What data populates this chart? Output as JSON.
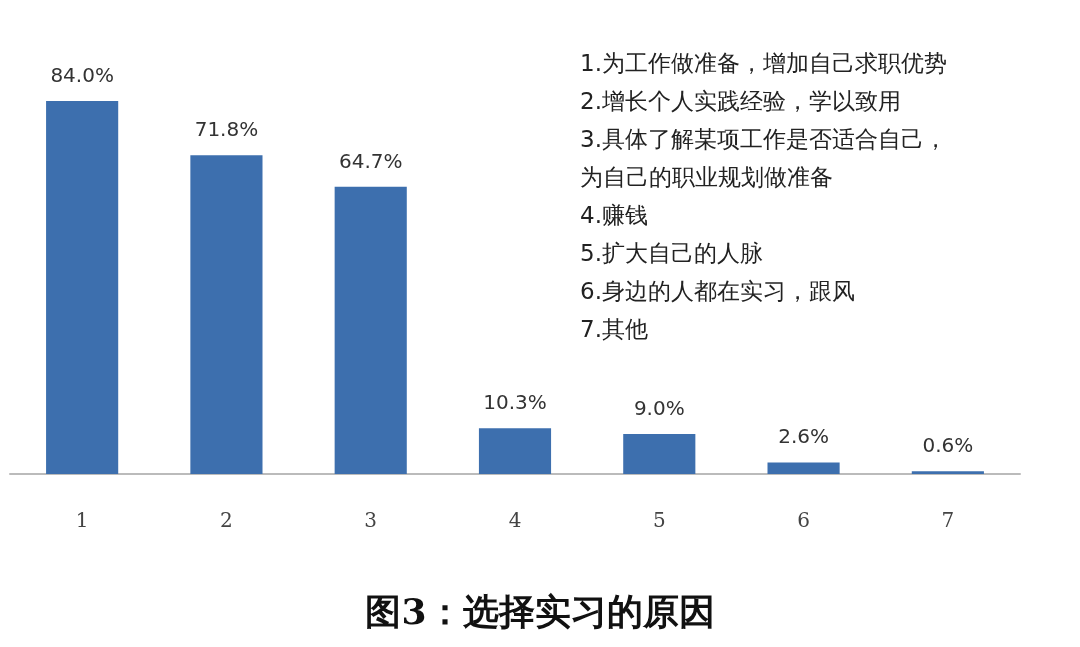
{
  "chart_data": {
    "type": "bar",
    "title": "图3：选择实习的原因",
    "categories": [
      "1",
      "2",
      "3",
      "4",
      "5",
      "6",
      "7"
    ],
    "values": [
      84.0,
      71.8,
      64.7,
      10.3,
      9.0,
      2.6,
      0.6
    ],
    "value_labels": [
      "84.0%",
      "71.8%",
      "64.7%",
      "10.3%",
      "9.0%",
      "2.6%",
      "0.6%"
    ],
    "color": "#3d6fae",
    "tick_labels": "x",
    "annotations": [
      "1.为工作做准备，增加自己求职优势",
      "2.增长个人实践经验，学以致用",
      "3.具体了解某项工作是否适合自己，为自己的职业规划做准备",
      "4.赚钱",
      "5.扩大自己的人脉",
      "6.身边的人都在实习，跟风",
      "7.其他"
    ]
  }
}
